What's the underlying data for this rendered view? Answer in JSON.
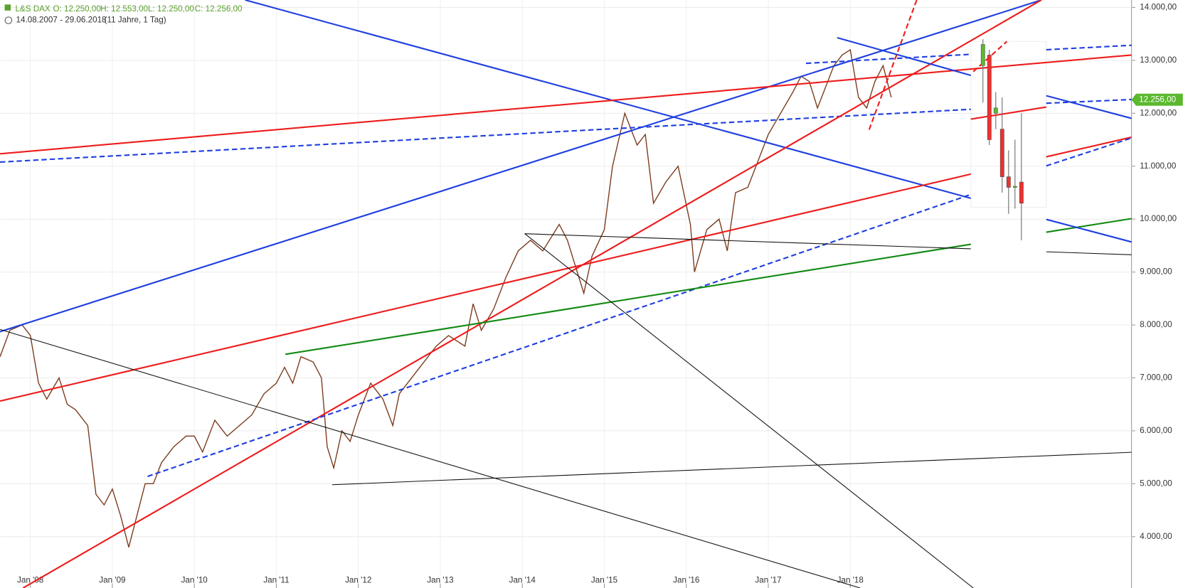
{
  "header": {
    "symbol": "L&S DAX",
    "open": "O: 12.250,00",
    "high": "H: 12.553,00",
    "low": "L: 12.250,00",
    "close": "C: 12.256,00",
    "range": "14.08.2007 - 29.06.2018",
    "span": "(11 Jahre, 1 Tag)"
  },
  "chart_data": {
    "type": "line",
    "grid": true,
    "xlim": [
      2007.632,
      2021.43
    ],
    "ylim": [
      3030,
      14140
    ],
    "xticks": [
      {
        "value": 2008,
        "label": "Jan '08"
      },
      {
        "value": 2009,
        "label": "Jan '09"
      },
      {
        "value": 2010,
        "label": "Jan '10"
      },
      {
        "value": 2011,
        "label": "Jan '11"
      },
      {
        "value": 2012,
        "label": "Jan '12"
      },
      {
        "value": 2013,
        "label": "Jan '13"
      },
      {
        "value": 2014,
        "label": "Jan '14"
      },
      {
        "value": 2015,
        "label": "Jan '15"
      },
      {
        "value": 2016,
        "label": "Jan '16"
      },
      {
        "value": 2017,
        "label": "Jan '17"
      },
      {
        "value": 2018,
        "label": "Jan '18"
      }
    ],
    "yticks": [
      {
        "value": 4000,
        "label": "4.000,00"
      },
      {
        "value": 5000,
        "label": "5.000,00"
      },
      {
        "value": 6000,
        "label": "6.000,00"
      },
      {
        "value": 7000,
        "label": "7.000,00"
      },
      {
        "value": 8000,
        "label": "8.000,00"
      },
      {
        "value": 9000,
        "label": "9.000,00"
      },
      {
        "value": 10000,
        "label": "10.000,00"
      },
      {
        "value": 11000,
        "label": "11.000,00"
      },
      {
        "value": 12000,
        "label": "12.000,00"
      },
      {
        "value": 13000,
        "label": "13.000,00"
      },
      {
        "value": 14000,
        "label": "14.000,00"
      }
    ],
    "last": {
      "value": 12256,
      "label": "12.256,00",
      "color": "#5cb82e"
    },
    "series": [
      {
        "color": "#7a3a1c",
        "x": [
          2007.63,
          2007.75,
          2007.9,
          2008.0,
          2008.1,
          2008.2,
          2008.35,
          2008.45,
          2008.55,
          2008.7,
          2008.8,
          2008.9,
          2009.0,
          2009.1,
          2009.2,
          2009.3,
          2009.4,
          2009.5,
          2009.6,
          2009.75,
          2009.9,
          2010.0,
          2010.1,
          2010.25,
          2010.4,
          2010.55,
          2010.7,
          2010.85,
          2011.0,
          2011.1,
          2011.2,
          2011.3,
          2011.45,
          2011.55,
          2011.62,
          2011.7,
          2011.8,
          2011.9,
          2012.0,
          2012.15,
          2012.3,
          2012.42,
          2012.5,
          2012.65,
          2012.8,
          2012.95,
          2013.1,
          2013.3,
          2013.4,
          2013.5,
          2013.65,
          2013.8,
          2013.95,
          2014.1,
          2014.25,
          2014.45,
          2014.55,
          2014.75,
          2014.85,
          2015.0,
          2015.1,
          2015.25,
          2015.4,
          2015.5,
          2015.6,
          2015.75,
          2015.9,
          2016.05,
          2016.1,
          2016.25,
          2016.4,
          2016.5,
          2016.6,
          2016.75,
          2016.9,
          2017.0,
          2017.15,
          2017.3,
          2017.4,
          2017.5,
          2017.6,
          2017.8,
          2017.9,
          2018.0,
          2018.1,
          2018.2,
          2018.3,
          2018.4,
          2018.5
        ],
        "values": [
          7400,
          7900,
          8000,
          7800,
          6900,
          6600,
          7000,
          6500,
          6400,
          6100,
          4800,
          4600,
          4900,
          4400,
          3800,
          4400,
          5000,
          5000,
          5400,
          5700,
          5900,
          5900,
          5600,
          6200,
          5900,
          6100,
          6300,
          6700,
          6900,
          7200,
          6900,
          7400,
          7300,
          7000,
          5700,
          5300,
          6000,
          5800,
          6300,
          6900,
          6600,
          6100,
          6700,
          7000,
          7300,
          7600,
          7800,
          7600,
          8400,
          7900,
          8300,
          8900,
          9400,
          9600,
          9400,
          9900,
          9600,
          8600,
          9300,
          9800,
          11000,
          12000,
          11400,
          11600,
          10300,
          10700,
          11000,
          9900,
          9000,
          9800,
          10000,
          9400,
          10500,
          10600,
          11200,
          11600,
          12000,
          12400,
          12700,
          12600,
          12100,
          12900,
          13100,
          13200,
          12300,
          12100,
          12600,
          12900,
          12300
        ]
      }
    ],
    "lines": [
      {
        "x": [
          2007.63,
          2020.33
        ],
        "y": [
          7873,
          14140
        ],
        "color": "#1f3fe0",
        "dash": false
      },
      {
        "x": [
          2010.62,
          2019.47
        ],
        "y": [
          14140,
          10394
        ],
        "color": "#1f3fe0",
        "dash": false
      },
      {
        "x": [
          2007.63,
          2021.43
        ],
        "y": [
          11234,
          13100
        ],
        "color": "#ee1c1c",
        "dash": false
      },
      {
        "x": [
          2007.63,
          2019.47
        ],
        "y": [
          11078,
          12075
        ],
        "color": "#1f3fe0",
        "dash": true
      },
      {
        "x": [
          2007.63,
          2019.47
        ],
        "y": [
          6562,
          10850
        ],
        "color": "#ee1c1c",
        "dash": false
      },
      {
        "x": [
          2007.91,
          2020.33
        ],
        "y": [
          3030,
          14140
        ],
        "color": "#ee1c1c",
        "dash": false
      },
      {
        "x": [
          2009.43,
          2019.47
        ],
        "y": [
          5138,
          10465
        ],
        "color": "#1f3fe0",
        "dash": true
      },
      {
        "x": [
          2011.11,
          2019.47
        ],
        "y": [
          7445,
          9525
        ],
        "color": "#138a13",
        "dash": false
      },
      {
        "x": [
          2007.63,
          2018.12
        ],
        "y": [
          7915,
          3030
        ],
        "color": "#111111",
        "dash": false
      },
      {
        "x": [
          2011.68,
          2021.43
        ],
        "y": [
          4981,
          5594
        ],
        "color": "#111111",
        "dash": false
      },
      {
        "x": [
          2014.03,
          2019.5
        ],
        "y": [
          9724,
          3030
        ],
        "color": "#111111",
        "dash": false
      },
      {
        "x": [
          2014.03,
          2019.47
        ],
        "y": [
          9724,
          9439
        ],
        "color": "#111111",
        "dash": false
      },
      {
        "x": [
          2018.23,
          2018.81
        ],
        "y": [
          11690,
          14140
        ],
        "color": "#ee1c1c",
        "dash": true
      },
      {
        "x": [
          2017.46,
          2019.47
        ],
        "y": [
          12943,
          13114
        ],
        "color": "#1f3fe0",
        "dash": true
      },
      {
        "x": [
          2017.84,
          2019.47
        ],
        "y": [
          13428,
          12716
        ],
        "color": "#1f3fe0",
        "dash": false
      },
      {
        "x": [
          2020.39,
          2021.43
        ],
        "y": [
          12331,
          11904
        ],
        "color": "#1f3fe0",
        "dash": false
      },
      {
        "x": [
          2020.39,
          2021.43
        ],
        "y": [
          11177,
          11548
        ],
        "color": "#ee1c1c",
        "dash": false
      },
      {
        "x": [
          2020.39,
          2021.43
        ],
        "y": [
          11006,
          11533
        ],
        "color": "#1f3fe0",
        "dash": true
      },
      {
        "x": [
          2020.39,
          2021.43
        ],
        "y": [
          9753,
          10009
        ],
        "color": "#138a13",
        "dash": false
      },
      {
        "x": [
          2020.39,
          2021.43
        ],
        "y": [
          9995,
          9568
        ],
        "color": "#1f3fe0",
        "dash": false
      },
      {
        "x": [
          2020.39,
          2021.43
        ],
        "y": [
          9383,
          9326
        ],
        "color": "#111111",
        "dash": false
      },
      {
        "x": [
          2020.39,
          2021.43
        ],
        "y": [
          13200,
          13285
        ],
        "color": "#1f3fe0",
        "dash": true
      },
      {
        "x": [
          2020.39,
          2021.43
        ],
        "y": [
          12189,
          12260
        ],
        "color": "#1f3fe0",
        "dash": true
      },
      {
        "x": [
          2019.47,
          2020.39
        ],
        "y": [
          11889,
          12117
        ],
        "color": "#ee1c1c",
        "dash": false
      },
      {
        "x": [
          2019.5,
          2019.91
        ],
        "y": [
          12787,
          13357
        ],
        "color": "#ee1c1c",
        "dash": true
      }
    ],
    "inset_candles": {
      "up_color": "#5cb82e",
      "down_color": "#ee3030",
      "open": [
        12900,
        13100,
        12000,
        11700,
        10800,
        10600,
        10700
      ],
      "high": [
        13400,
        13200,
        12400,
        12300,
        11300,
        11500,
        12000
      ],
      "low": [
        12200,
        11400,
        11700,
        10500,
        10100,
        10200,
        9600
      ],
      "close": [
        13300,
        11500,
        12100,
        10800,
        10600,
        10620,
        10300
      ]
    }
  }
}
